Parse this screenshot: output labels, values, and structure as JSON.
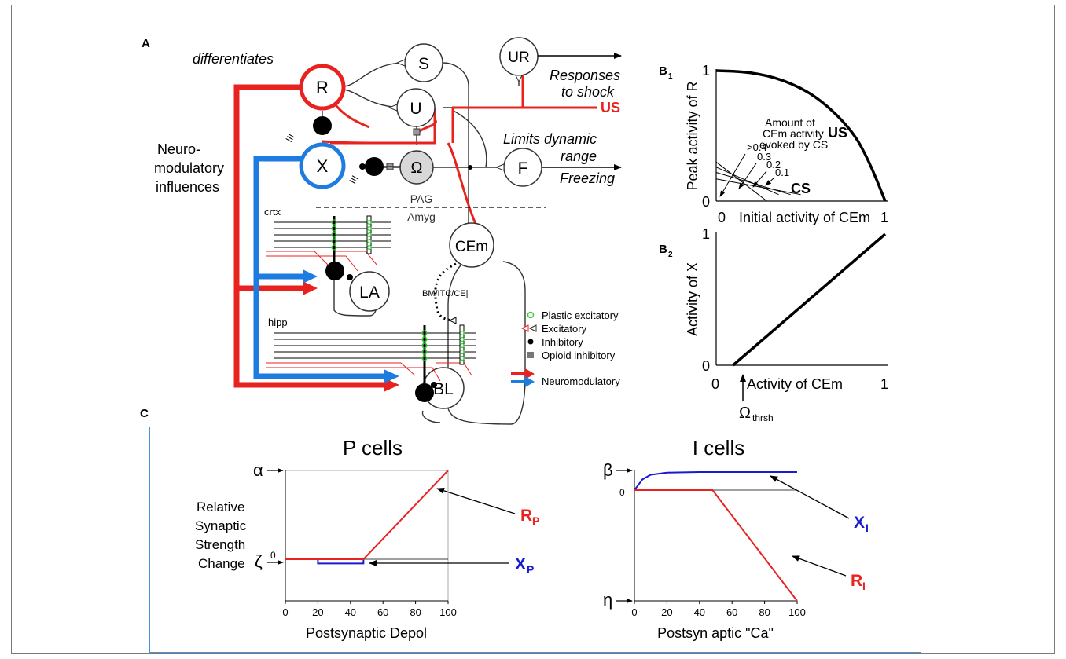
{
  "panel_labels": {
    "a": "A",
    "b1_main": "B",
    "b1_sub": "1",
    "b2_main": "B",
    "b2_sub": "2",
    "c": "C"
  },
  "panel_a": {
    "nodes": {
      "R": "R",
      "S": "S",
      "U": "U",
      "UR": "UR",
      "X": "X",
      "omega": "Ω",
      "F": "F",
      "CEm": "CEm",
      "LA": "LA",
      "BL": "BL"
    },
    "texts": {
      "differentiates": "differentiates",
      "neuro1": "Neuro-",
      "neuro2": "modulatory",
      "neuro3": "influences",
      "responses1": "Responses",
      "responses2": "to shock",
      "us": "US",
      "limits1": "Limits dynamic",
      "limits2": "range",
      "freezing": "Freezing",
      "pag": "PAG",
      "amyg": "Amyg",
      "crtx": "crtx",
      "hipp": "hipp",
      "bm": "BM/ITC/CE|",
      "tick": "III"
    },
    "legend": [
      {
        "label": "Plastic excitatory",
        "symbol": "green-circle"
      },
      {
        "label": "Excitatory",
        "symbol": "triangles"
      },
      {
        "label": "Inhibitory",
        "symbol": "black-dot"
      },
      {
        "label": "Opioid inhibitory",
        "symbol": "gray-square"
      },
      {
        "label": "Neuromodulatory",
        "symbol": "red-blue-arrows"
      }
    ],
    "colors": {
      "red": "#e8231f",
      "blue": "#1e7be0",
      "green": "#2fd02f",
      "omega_fill": "#d8d8d8"
    }
  },
  "panel_b1": {
    "ylabel": "Peak activity of R",
    "xlabel": "Initial activity of CEm",
    "x_ticks": [
      "0",
      "1"
    ],
    "y_ticks": [
      "0",
      "1"
    ],
    "curve_label": "US",
    "cs_label": "CS",
    "annotation1": "Amount of",
    "annotation2": "CEm activity",
    "annotation3": "evoked by CS",
    "cs_levels": [
      ">0.4",
      "0.3",
      "0.2",
      "0.1"
    ]
  },
  "panel_b2": {
    "ylabel": "Activity of X",
    "xlabel": "Activity of CEm",
    "x_ticks": [
      "0",
      "1"
    ],
    "y_ticks": [
      "0",
      "1"
    ],
    "omega_main": "Ω",
    "omega_sub": "thrsh"
  },
  "panel_c": {
    "p_title": "P cells",
    "i_title": "I cells",
    "ylabel_lines": [
      "Relative",
      "Synaptic",
      "Strength",
      "Change"
    ],
    "p_xlabel": "Postsynaptic Depol",
    "i_xlabel": "Postsyn aptic \"Ca\"",
    "x_ticks": [
      "0",
      "20",
      "40",
      "60",
      "80",
      "100"
    ],
    "p_top": "α",
    "p_bottom": "ζ",
    "i_top": "β",
    "i_bottom": "η",
    "zero": "0",
    "rp_main": "R",
    "rp_sub": "P",
    "xp_main": "X",
    "xp_sub": "P",
    "xi_main": "X",
    "xi_sub": "I",
    "ri_main": "R",
    "ri_sub": "I"
  },
  "chart_data": [
    {
      "type": "line",
      "xlabel": "Initial activity of CEm",
      "ylabel": "Peak activity of R",
      "xlim": [
        0,
        1
      ],
      "ylim": [
        0,
        1
      ],
      "series": [
        {
          "name": "US",
          "x": [
            0,
            0.2,
            0.4,
            0.6,
            0.8,
            0.9,
            1.0
          ],
          "y": [
            1.0,
            0.99,
            0.93,
            0.8,
            0.55,
            0.32,
            0.0
          ]
        },
        {
          "name": ">0.4",
          "x": [
            0,
            0.3
          ],
          "y": [
            0.3,
            0.0
          ]
        },
        {
          "name": "0.3",
          "x": [
            0,
            0.37
          ],
          "y": [
            0.26,
            0.05
          ]
        },
        {
          "name": "0.2",
          "x": [
            0,
            0.44
          ],
          "y": [
            0.22,
            0.05
          ]
        },
        {
          "name": "0.1",
          "x": [
            0,
            0.5
          ],
          "y": [
            0.17,
            0.05
          ]
        }
      ]
    },
    {
      "type": "line",
      "xlabel": "Activity of CEm",
      "ylabel": "Activity of X",
      "xlim": [
        0,
        1
      ],
      "ylim": [
        0,
        1
      ],
      "series": [
        {
          "name": "",
          "x": [
            0.1,
            1.0
          ],
          "y": [
            0.0,
            1.0
          ]
        }
      ]
    },
    {
      "type": "line",
      "title": "P cells",
      "xlabel": "Postsynaptic Depol",
      "ylabel": "Relative Synaptic Strength Change",
      "xlim": [
        0,
        100
      ],
      "series": [
        {
          "name": "R_P",
          "x": [
            0,
            48,
            100
          ],
          "y": [
            0,
            0,
            1
          ],
          "color": "#e8231f"
        },
        {
          "name": "X_P",
          "x": [
            20,
            20,
            48,
            48
          ],
          "y": [
            0,
            -0.06,
            -0.06,
            0
          ],
          "color": "#1a1ad0"
        }
      ]
    },
    {
      "type": "line",
      "title": "I cells",
      "xlabel": "Postsyn aptic \"Ca\"",
      "ylabel": "",
      "xlim": [
        0,
        100
      ],
      "series": [
        {
          "name": "X_I",
          "x": [
            0,
            5,
            10,
            20,
            40,
            100
          ],
          "y": [
            0,
            0.6,
            0.85,
            0.97,
            1.0,
            1.0
          ],
          "color": "#1a1ad0"
        },
        {
          "name": "R_I",
          "x": [
            0,
            48,
            100
          ],
          "y": [
            0,
            0,
            -1
          ],
          "color": "#e8231f"
        }
      ]
    }
  ]
}
